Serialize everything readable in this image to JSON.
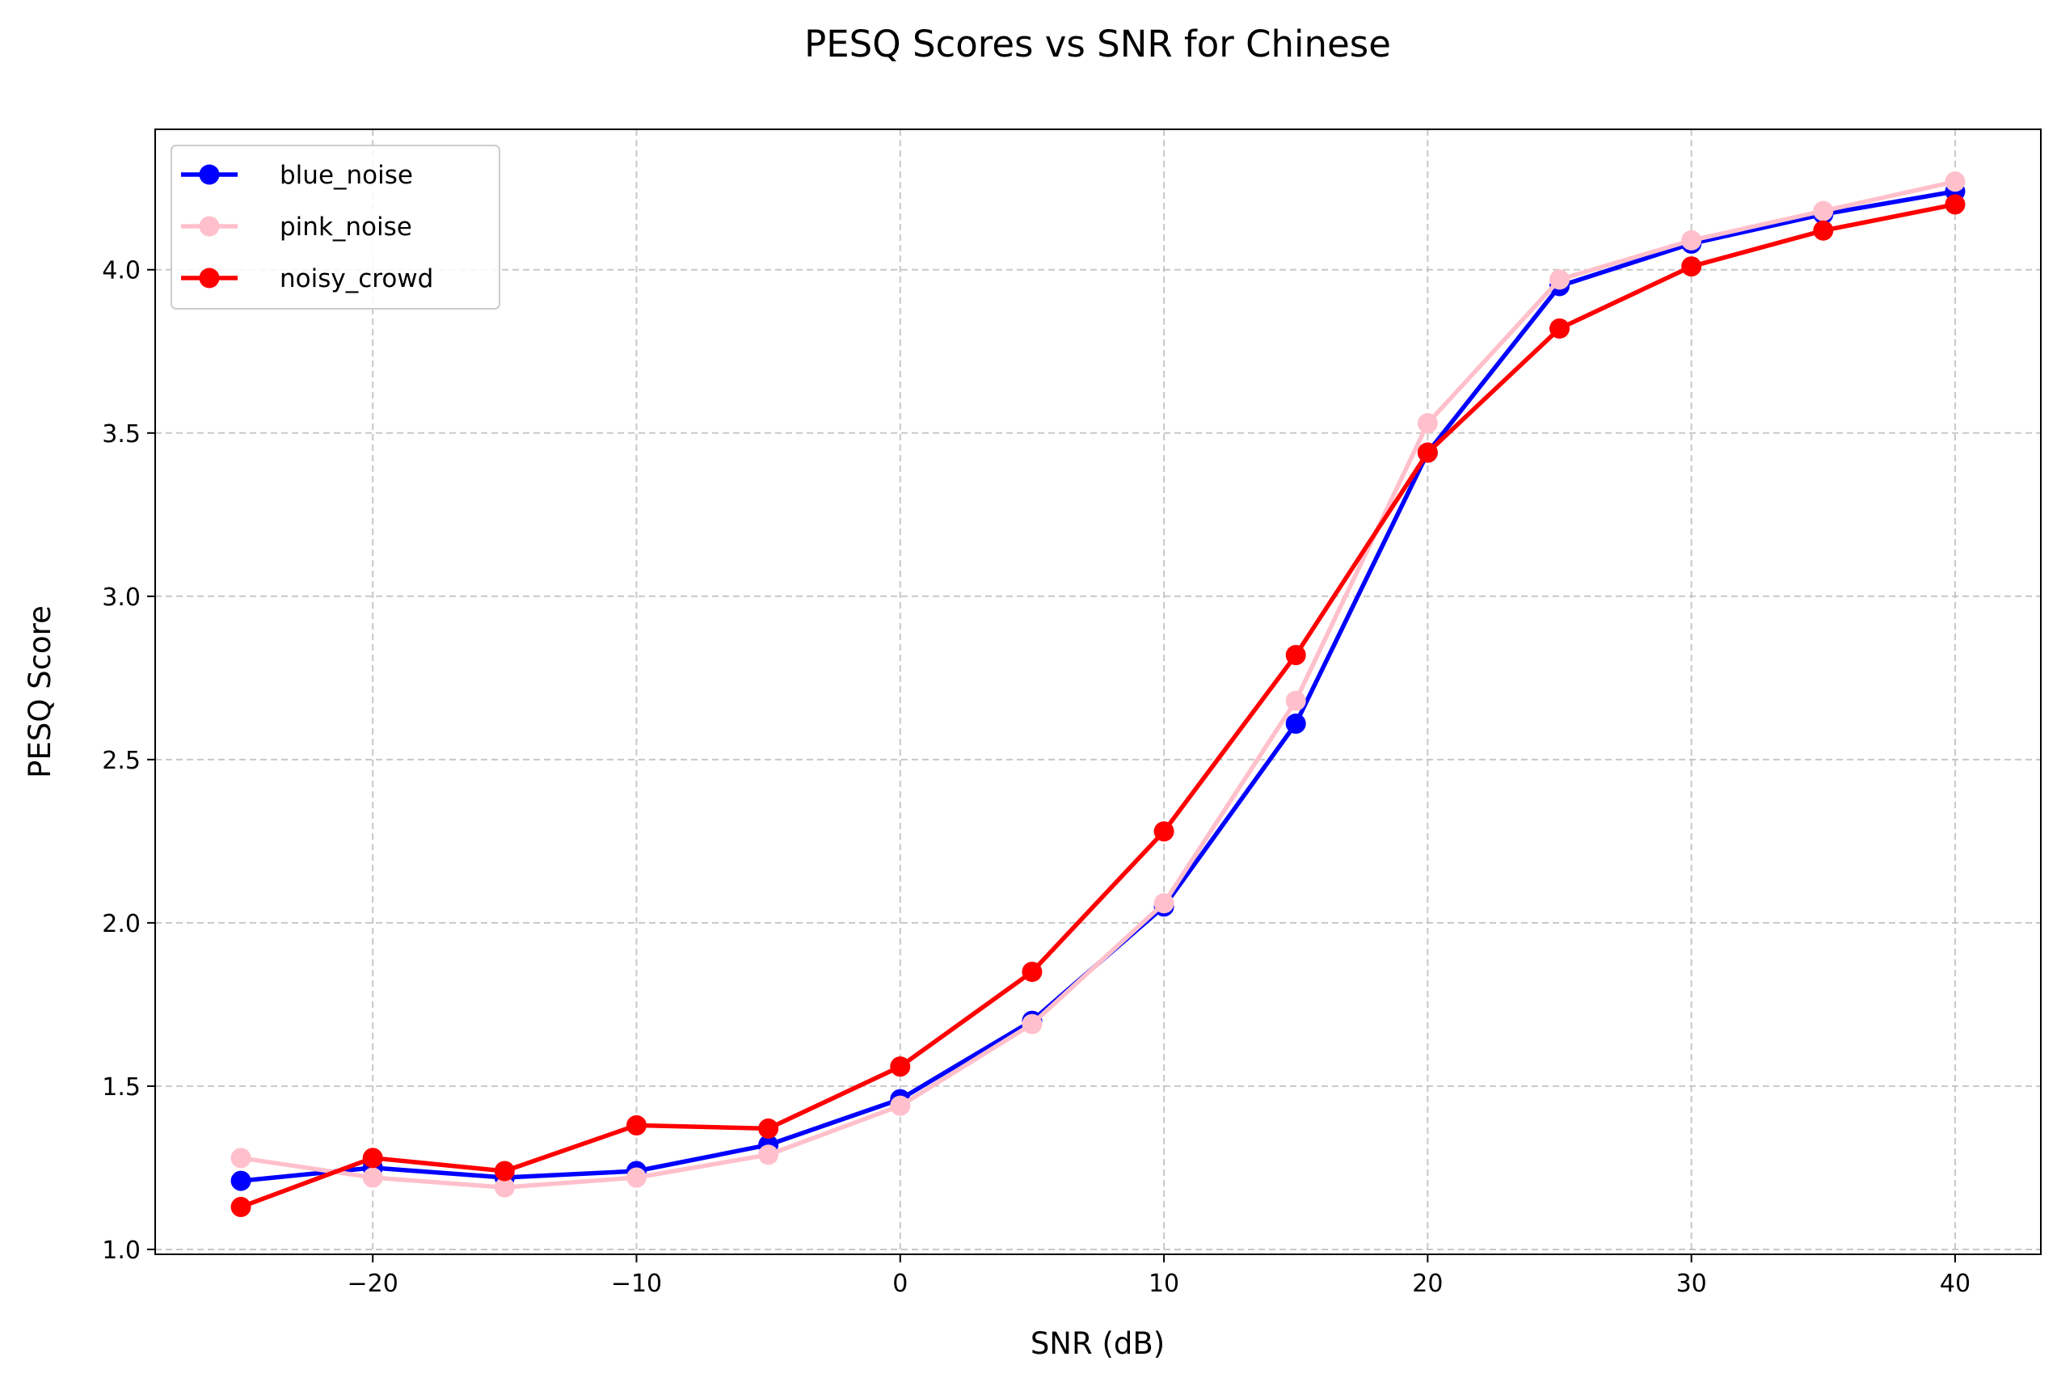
{
  "chart_data": {
    "type": "line",
    "title": "PESQ Scores vs SNR for Chinese",
    "xlabel": "SNR (dB)",
    "ylabel": "PESQ Score",
    "x": [
      -25,
      -20,
      -15,
      -10,
      -5,
      0,
      5,
      10,
      15,
      20,
      25,
      30,
      35,
      40
    ],
    "xlim": [
      -28.25,
      43.25
    ],
    "ylim": [
      0.985,
      4.43
    ],
    "xticks": [
      -20,
      -10,
      0,
      10,
      20,
      30,
      40
    ],
    "xtick_labels": [
      "−20",
      "−10",
      "0",
      "10",
      "20",
      "30",
      "40"
    ],
    "yticks": [
      1.0,
      1.5,
      2.0,
      2.5,
      3.0,
      3.5,
      4.0
    ],
    "ytick_labels": [
      "1.0",
      "1.5",
      "2.0",
      "2.5",
      "3.0",
      "3.5",
      "4.0"
    ],
    "grid": true,
    "legend_position": "top-left",
    "series": [
      {
        "name": "blue_noise",
        "color": "#0000ff",
        "values": [
          1.21,
          1.25,
          1.22,
          1.24,
          1.32,
          1.46,
          1.7,
          2.05,
          2.61,
          3.44,
          3.95,
          4.08,
          4.17,
          4.24
        ]
      },
      {
        "name": "pink_noise",
        "color": "#ffc0cb",
        "values": [
          1.28,
          1.22,
          1.19,
          1.22,
          1.29,
          1.44,
          1.69,
          2.06,
          2.68,
          3.53,
          3.97,
          4.09,
          4.18,
          4.27
        ]
      },
      {
        "name": "noisy_crowd",
        "color": "#ff0000",
        "values": [
          1.13,
          1.28,
          1.24,
          1.38,
          1.37,
          1.56,
          1.85,
          2.28,
          2.82,
          3.44,
          3.82,
          4.01,
          4.12,
          4.2
        ]
      }
    ]
  }
}
